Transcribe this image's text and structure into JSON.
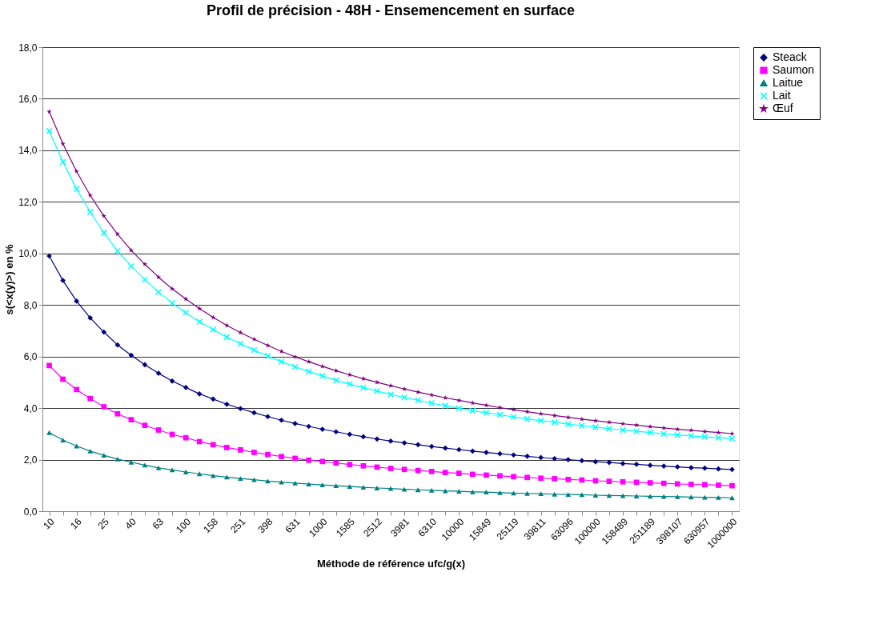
{
  "chart_data": {
    "type": "line",
    "title": "Profil de précision - 48H - Ensemencement en surface",
    "xlabel": "Méthode de référence ufc/g(x)",
    "ylabel": "s(<x(y)>) en %",
    "categories": [
      "10",
      null,
      "16",
      null,
      "25",
      null,
      "40",
      null,
      "63",
      null,
      "100",
      null,
      "158",
      null,
      "251",
      null,
      "398",
      null,
      "631",
      null,
      "1000",
      null,
      "1585",
      null,
      "2512",
      null,
      "3981",
      null,
      "6310",
      null,
      "10000",
      null,
      "15849",
      null,
      "25119",
      null,
      "39811",
      null,
      "63096",
      null,
      "100000",
      null,
      "158489",
      null,
      "251189",
      null,
      "398107",
      null,
      "630957",
      null,
      "1000000"
    ],
    "ylim": [
      0,
      18
    ],
    "yticks": [
      {
        "value": 0,
        "label": "0,0"
      },
      {
        "value": 2,
        "label": "2,0"
      },
      {
        "value": 4,
        "label": "4,0"
      },
      {
        "value": 6,
        "label": "6,0"
      },
      {
        "value": 8,
        "label": "8,0"
      },
      {
        "value": 10,
        "label": "10,0"
      },
      {
        "value": 12,
        "label": "12,0"
      },
      {
        "value": 14,
        "label": "14,0"
      },
      {
        "value": 16,
        "label": "16,0"
      },
      {
        "value": 18,
        "label": "18,0"
      }
    ],
    "grid": "y",
    "legend": "right",
    "series": [
      {
        "name": "Steack",
        "color": "#000080",
        "marker": "diamond",
        "values": [
          9.9,
          8.95,
          8.15,
          7.5,
          6.95,
          6.45,
          6.05,
          5.68,
          5.35,
          5.05,
          4.8,
          4.55,
          4.35,
          4.15,
          3.98,
          3.82,
          3.67,
          3.53,
          3.4,
          3.29,
          3.18,
          3.08,
          2.98,
          2.89,
          2.8,
          2.72,
          2.65,
          2.58,
          2.51,
          2.45,
          2.39,
          2.33,
          2.28,
          2.23,
          2.18,
          2.13,
          2.08,
          2.04,
          2.0,
          1.96,
          1.92,
          1.89,
          1.85,
          1.82,
          1.78,
          1.75,
          1.72,
          1.69,
          1.67,
          1.64,
          1.62
        ]
      },
      {
        "name": "Saumon",
        "color": "#ff00ff",
        "marker": "square",
        "values": [
          5.65,
          5.12,
          4.72,
          4.37,
          4.05,
          3.78,
          3.55,
          3.33,
          3.15,
          2.98,
          2.85,
          2.7,
          2.58,
          2.47,
          2.38,
          2.28,
          2.2,
          2.12,
          2.05,
          1.98,
          1.93,
          1.87,
          1.81,
          1.76,
          1.71,
          1.66,
          1.62,
          1.58,
          1.54,
          1.5,
          1.47,
          1.43,
          1.4,
          1.37,
          1.34,
          1.31,
          1.28,
          1.26,
          1.23,
          1.21,
          1.18,
          1.16,
          1.14,
          1.12,
          1.1,
          1.08,
          1.06,
          1.04,
          1.03,
          1.01,
          0.99
        ]
      },
      {
        "name": "Laitue",
        "color": "#008080",
        "marker": "triangle",
        "values": [
          3.05,
          2.76,
          2.53,
          2.33,
          2.17,
          2.02,
          1.9,
          1.79,
          1.68,
          1.6,
          1.52,
          1.45,
          1.38,
          1.32,
          1.27,
          1.22,
          1.17,
          1.13,
          1.09,
          1.05,
          1.02,
          0.99,
          0.96,
          0.93,
          0.9,
          0.88,
          0.85,
          0.83,
          0.81,
          0.79,
          0.77,
          0.75,
          0.74,
          0.72,
          0.7,
          0.69,
          0.68,
          0.66,
          0.65,
          0.64,
          0.62,
          0.61,
          0.6,
          0.59,
          0.58,
          0.57,
          0.56,
          0.55,
          0.54,
          0.53,
          0.52
        ]
      },
      {
        "name": "Lait",
        "color": "#00ffff",
        "marker": "cross",
        "values": [
          14.75,
          13.55,
          12.5,
          11.6,
          10.8,
          10.1,
          9.5,
          8.98,
          8.5,
          8.08,
          7.7,
          7.35,
          7.05,
          6.75,
          6.5,
          6.25,
          6.02,
          5.8,
          5.6,
          5.42,
          5.25,
          5.08,
          4.93,
          4.79,
          4.66,
          4.53,
          4.41,
          4.3,
          4.19,
          4.09,
          3.99,
          3.9,
          3.82,
          3.74,
          3.66,
          3.58,
          3.51,
          3.45,
          3.38,
          3.32,
          3.26,
          3.2,
          3.15,
          3.1,
          3.05,
          3.0,
          2.96,
          2.92,
          2.88,
          2.85,
          2.82
        ]
      },
      {
        "name": "Œuf",
        "color": "#800080",
        "marker": "star",
        "values": [
          15.5,
          14.25,
          13.18,
          12.25,
          11.45,
          10.75,
          10.12,
          9.58,
          9.08,
          8.63,
          8.23,
          7.86,
          7.52,
          7.21,
          6.93,
          6.67,
          6.43,
          6.2,
          5.99,
          5.8,
          5.62,
          5.45,
          5.29,
          5.14,
          5.0,
          4.87,
          4.74,
          4.62,
          4.51,
          4.4,
          4.3,
          4.2,
          4.11,
          4.02,
          3.94,
          3.86,
          3.78,
          3.71,
          3.64,
          3.57,
          3.51,
          3.45,
          3.39,
          3.34,
          3.28,
          3.23,
          3.18,
          3.14,
          3.09,
          3.05,
          3.01
        ]
      }
    ]
  }
}
